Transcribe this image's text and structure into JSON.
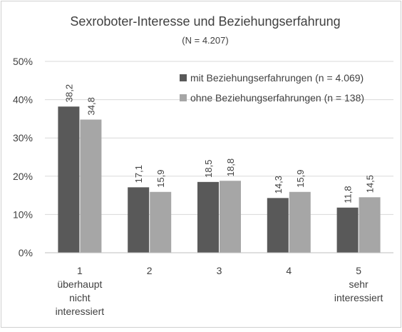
{
  "chart_data": {
    "type": "bar",
    "title": "Sexroboter-Interesse und Beziehungserfahrung",
    "subtitle": "(N = 4.207)",
    "categories": [
      "1\nüberhaupt\nnicht\ninteressiert",
      "2",
      "3",
      "4",
      "5\nsehr\ninteressiert"
    ],
    "series": [
      {
        "name": "mit Beziehungserfahrungen (n = 4.069)",
        "color": "#595959",
        "values": [
          38.2,
          17.1,
          18.5,
          14.3,
          11.8
        ],
        "value_labels": [
          "38,2",
          "17,1",
          "18,5",
          "14,3",
          "11,8"
        ]
      },
      {
        "name": "ohne Beziehungserfahrungen (n = 138)",
        "color": "#a6a6a6",
        "values": [
          34.8,
          15.9,
          18.8,
          15.9,
          14.5
        ],
        "value_labels": [
          "34,8",
          "15,9",
          "18,8",
          "15,9",
          "14,5"
        ]
      }
    ],
    "ylim": [
      0,
      50
    ],
    "yticks": [
      {
        "value": 0,
        "label": "0%"
      },
      {
        "value": 10,
        "label": "10%"
      },
      {
        "value": 20,
        "label": "20%"
      },
      {
        "value": 30,
        "label": "30%"
      },
      {
        "value": 40,
        "label": "40%"
      },
      {
        "value": 50,
        "label": "50%"
      }
    ],
    "grid": true,
    "legend": "top-right"
  }
}
